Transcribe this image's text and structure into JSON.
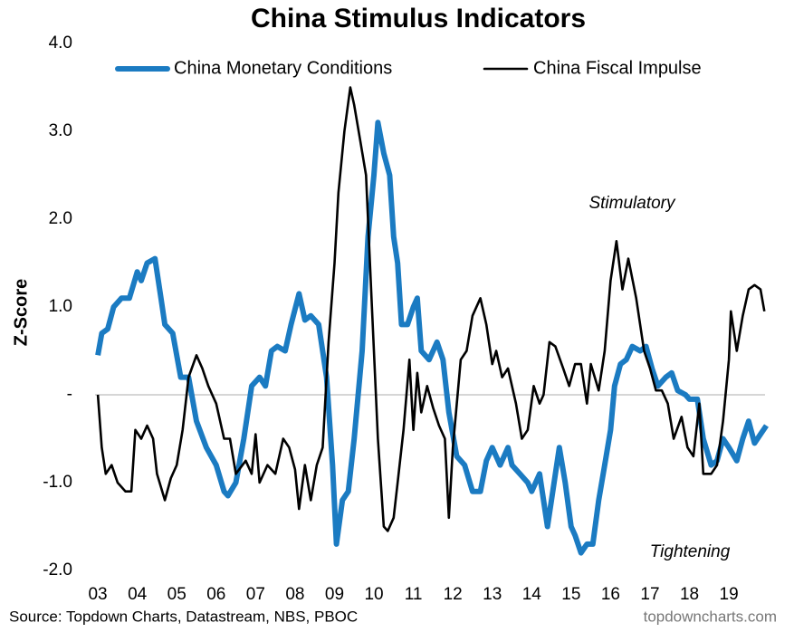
{
  "chart_data": {
    "type": "line",
    "title": "China Stimulus Indicators",
    "y_label": "Z-Score",
    "source": "Source: Topdown Charts, Datastream, NBS, PBOC",
    "watermark": "topdowncharts.com",
    "annotations": [
      "Stimulatory",
      "Tightening"
    ],
    "xlim": [
      2002.7,
      2020.26
    ],
    "xticks": [
      {
        "value": 2003,
        "label": "03"
      },
      {
        "value": 2004,
        "label": "04"
      },
      {
        "value": 2005,
        "label": "05"
      },
      {
        "value": 2006,
        "label": "06"
      },
      {
        "value": 2007,
        "label": "07"
      },
      {
        "value": 2008,
        "label": "08"
      },
      {
        "value": 2009,
        "label": "09"
      },
      {
        "value": 2010,
        "label": "10"
      },
      {
        "value": 2011,
        "label": "11"
      },
      {
        "value": 2012,
        "label": "12"
      },
      {
        "value": 2013,
        "label": "13"
      },
      {
        "value": 2014,
        "label": "14"
      },
      {
        "value": 2015,
        "label": "15"
      },
      {
        "value": 2016,
        "label": "16"
      },
      {
        "value": 2017,
        "label": "17"
      },
      {
        "value": 2018,
        "label": "18"
      },
      {
        "value": 2019,
        "label": "19"
      }
    ],
    "ylim": [
      -2,
      4
    ],
    "yticks": [
      {
        "value": 4,
        "label": "4.0"
      },
      {
        "value": 3,
        "label": "3.0"
      },
      {
        "value": 2,
        "label": "2.0"
      },
      {
        "value": 1,
        "label": "1.0"
      },
      {
        "value": 0,
        "label": "-"
      },
      {
        "value": -1,
        "label": "-1.0"
      },
      {
        "value": -2,
        "label": "-2.0"
      }
    ],
    "grid": false,
    "zero_line": true,
    "series": [
      {
        "name": "China Monetary Conditions",
        "color": "#1b7bc2",
        "width": 6,
        "x": [
          2003.0,
          2003.1,
          2003.25,
          2003.4,
          2003.6,
          2003.8,
          2004.0,
          2004.1,
          2004.25,
          2004.45,
          2004.6,
          2004.7,
          2004.9,
          2005.1,
          2005.3,
          2005.5,
          2005.75,
          2006.0,
          2006.2,
          2006.3,
          2006.5,
          2006.7,
          2006.9,
          2007.1,
          2007.25,
          2007.4,
          2007.55,
          2007.75,
          2007.9,
          2008.1,
          2008.25,
          2008.4,
          2008.6,
          2008.8,
          2008.95,
          2009.05,
          2009.2,
          2009.35,
          2009.5,
          2009.7,
          2009.85,
          2010.0,
          2010.1,
          2010.25,
          2010.4,
          2010.5,
          2010.6,
          2010.7,
          2010.85,
          2011.0,
          2011.1,
          2011.2,
          2011.4,
          2011.6,
          2011.75,
          2011.9,
          2012.1,
          2012.3,
          2012.5,
          2012.7,
          2012.85,
          2013.0,
          2013.2,
          2013.4,
          2013.5,
          2013.7,
          2013.9,
          2014.0,
          2014.2,
          2014.4,
          2014.5,
          2014.7,
          2014.85,
          2015.0,
          2015.1,
          2015.25,
          2015.4,
          2015.55,
          2015.7,
          2015.85,
          2016.0,
          2016.1,
          2016.25,
          2016.4,
          2016.55,
          2016.75,
          2016.9,
          2017.05,
          2017.2,
          2017.4,
          2017.55,
          2017.7,
          2017.9,
          2018.0,
          2018.2,
          2018.35,
          2018.55,
          2018.7,
          2018.85,
          2019.0,
          2019.2,
          2019.35,
          2019.5,
          2019.65,
          2019.8,
          2019.95
        ],
        "values": [
          0.45,
          0.7,
          0.75,
          1.0,
          1.1,
          1.1,
          1.4,
          1.3,
          1.5,
          1.55,
          1.1,
          0.8,
          0.7,
          0.2,
          0.2,
          -0.3,
          -0.6,
          -0.8,
          -1.1,
          -1.15,
          -1.0,
          -0.5,
          0.1,
          0.2,
          0.1,
          0.5,
          0.55,
          0.5,
          0.8,
          1.15,
          0.85,
          0.9,
          0.8,
          0.2,
          -0.8,
          -1.7,
          -1.2,
          -1.1,
          -0.5,
          0.5,
          1.8,
          2.5,
          3.1,
          2.75,
          2.5,
          1.8,
          1.5,
          0.8,
          0.8,
          1.0,
          1.1,
          0.5,
          0.4,
          0.6,
          0.4,
          -0.2,
          -0.7,
          -0.8,
          -1.1,
          -1.1,
          -0.75,
          -0.6,
          -0.8,
          -0.6,
          -0.8,
          -0.9,
          -1.0,
          -1.1,
          -0.9,
          -1.5,
          -1.2,
          -0.6,
          -1.0,
          -1.5,
          -1.6,
          -1.8,
          -1.7,
          -1.7,
          -1.2,
          -0.8,
          -0.4,
          0.1,
          0.35,
          0.4,
          0.55,
          0.5,
          0.55,
          0.3,
          0.1,
          0.2,
          0.25,
          0.05,
          0,
          -0.05,
          -0.05,
          -0.5,
          -0.8,
          -0.75,
          -0.5,
          -0.6,
          -0.75,
          -0.5,
          -0.3,
          -0.55,
          -0.45,
          -0.35
        ]
      },
      {
        "name": "China Fiscal Impulse",
        "color": "#000000",
        "width": 2.6,
        "x": [
          2003.0,
          2003.1,
          2003.2,
          2003.35,
          2003.5,
          2003.7,
          2003.85,
          2003.95,
          2004.1,
          2004.25,
          2004.4,
          2004.5,
          2004.7,
          2004.85,
          2005.0,
          2005.15,
          2005.3,
          2005.5,
          2005.65,
          2005.8,
          2006.0,
          2006.2,
          2006.35,
          2006.5,
          2006.75,
          2006.9,
          2007.0,
          2007.1,
          2007.3,
          2007.5,
          2007.7,
          2007.85,
          2008.0,
          2008.1,
          2008.25,
          2008.4,
          2008.55,
          2008.7,
          2008.85,
          2009.0,
          2009.1,
          2009.25,
          2009.4,
          2009.5,
          2009.65,
          2009.8,
          2009.95,
          2010.1,
          2010.25,
          2010.35,
          2010.5,
          2010.6,
          2010.75,
          2010.9,
          2011.0,
          2011.1,
          2011.2,
          2011.35,
          2011.5,
          2011.65,
          2011.8,
          2011.9,
          2012.0,
          2012.2,
          2012.35,
          2012.5,
          2012.7,
          2012.85,
          2013.0,
          2013.1,
          2013.25,
          2013.4,
          2013.6,
          2013.75,
          2013.9,
          2014.05,
          2014.2,
          2014.3,
          2014.45,
          2014.6,
          2014.8,
          2014.95,
          2015.1,
          2015.25,
          2015.4,
          2015.5,
          2015.7,
          2015.85,
          2016.0,
          2016.15,
          2016.3,
          2016.45,
          2016.65,
          2016.85,
          2017.0,
          2017.15,
          2017.3,
          2017.45,
          2017.6,
          2017.8,
          2017.95,
          2018.1,
          2018.25,
          2018.35,
          2018.55,
          2018.7,
          2018.85,
          2019.0,
          2019.05,
          2019.2,
          2019.35,
          2019.5,
          2019.65,
          2019.8,
          2019.9
        ],
        "values": [
          0,
          -0.6,
          -0.9,
          -0.8,
          -1.0,
          -1.1,
          -1.1,
          -0.4,
          -0.5,
          -0.35,
          -0.5,
          -0.9,
          -1.2,
          -0.95,
          -0.8,
          -0.4,
          0.2,
          0.45,
          0.3,
          0.1,
          -0.1,
          -0.5,
          -0.5,
          -0.9,
          -0.75,
          -0.9,
          -0.45,
          -1.0,
          -0.8,
          -0.9,
          -0.5,
          -0.6,
          -0.85,
          -1.3,
          -0.8,
          -1.2,
          -0.8,
          -0.6,
          0.6,
          1.5,
          2.3,
          3.0,
          3.5,
          3.3,
          2.9,
          2.5,
          1.0,
          -0.5,
          -1.5,
          -1.55,
          -1.4,
          -1.0,
          -0.4,
          0.4,
          -0.4,
          0.25,
          -0.2,
          0.1,
          -0.15,
          -0.35,
          -0.5,
          -1.4,
          -0.6,
          0.4,
          0.5,
          0.9,
          1.1,
          0.8,
          0.35,
          0.5,
          0.2,
          0.3,
          -0.1,
          -0.5,
          -0.4,
          0.1,
          -0.1,
          0.0,
          0.6,
          0.55,
          0.3,
          0.1,
          0.35,
          0.35,
          -0.1,
          0.35,
          0.05,
          0.5,
          1.3,
          1.75,
          1.2,
          1.55,
          1.1,
          0.5,
          0.3,
          0.05,
          0.05,
          -0.1,
          -0.5,
          -0.25,
          -0.6,
          -0.7,
          -0.1,
          -0.9,
          -0.9,
          -0.8,
          -0.3,
          0.4,
          0.95,
          0.5,
          0.9,
          1.2,
          1.25,
          1.2,
          0.95
        ]
      }
    ]
  }
}
